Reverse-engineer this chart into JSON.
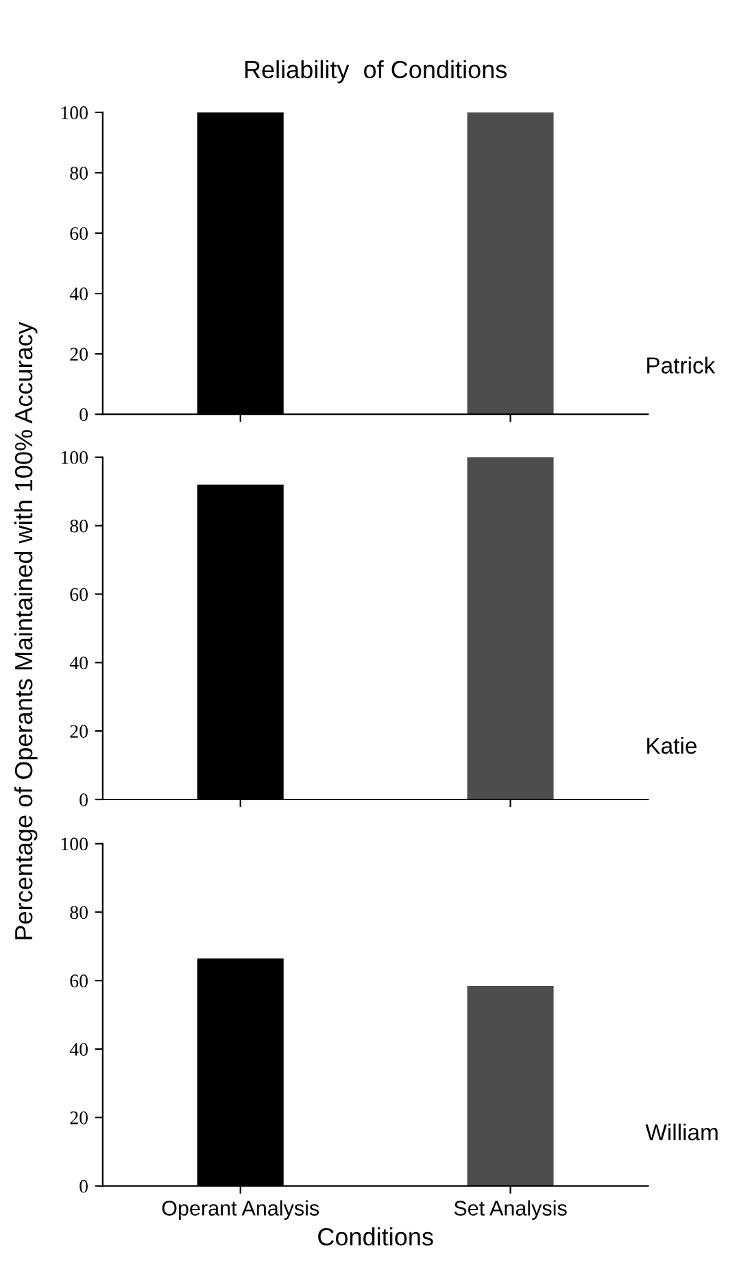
{
  "chart_data": [
    {
      "type": "bar",
      "title": "Reliability  of Conditions",
      "categories": [
        null,
        null
      ],
      "values": [
        100,
        100
      ],
      "colors": [
        "#000000",
        "#4d4d4d"
      ],
      "ylim": [
        0,
        100
      ],
      "yticks": [
        0,
        20,
        40,
        60,
        80,
        100
      ],
      "tick_labels": "y",
      "grid": false,
      "legend": false,
      "annotations": [
        "Patrick"
      ]
    },
    {
      "type": "bar",
      "ylabel": "Percentage of Operants Maintained with 100% Accuracy",
      "categories": [
        null,
        null
      ],
      "values": [
        92,
        100
      ],
      "colors": [
        "#000000",
        "#4d4d4d"
      ],
      "ylim": [
        0,
        100
      ],
      "yticks": [
        0,
        20,
        40,
        60,
        80,
        100
      ],
      "tick_labels": "y",
      "grid": false,
      "legend": false,
      "annotations": [
        "Katie"
      ]
    },
    {
      "type": "bar",
      "xlabel": "Conditions",
      "categories": [
        "Operant Analysis",
        "Set Analysis"
      ],
      "values": [
        66.5,
        58.4
      ],
      "colors": [
        "#000000",
        "#4d4d4d"
      ],
      "ylim": [
        0,
        100
      ],
      "yticks": [
        0,
        20,
        40,
        60,
        80,
        100
      ],
      "grid": false,
      "legend": false,
      "annotations": [
        "William"
      ]
    }
  ]
}
